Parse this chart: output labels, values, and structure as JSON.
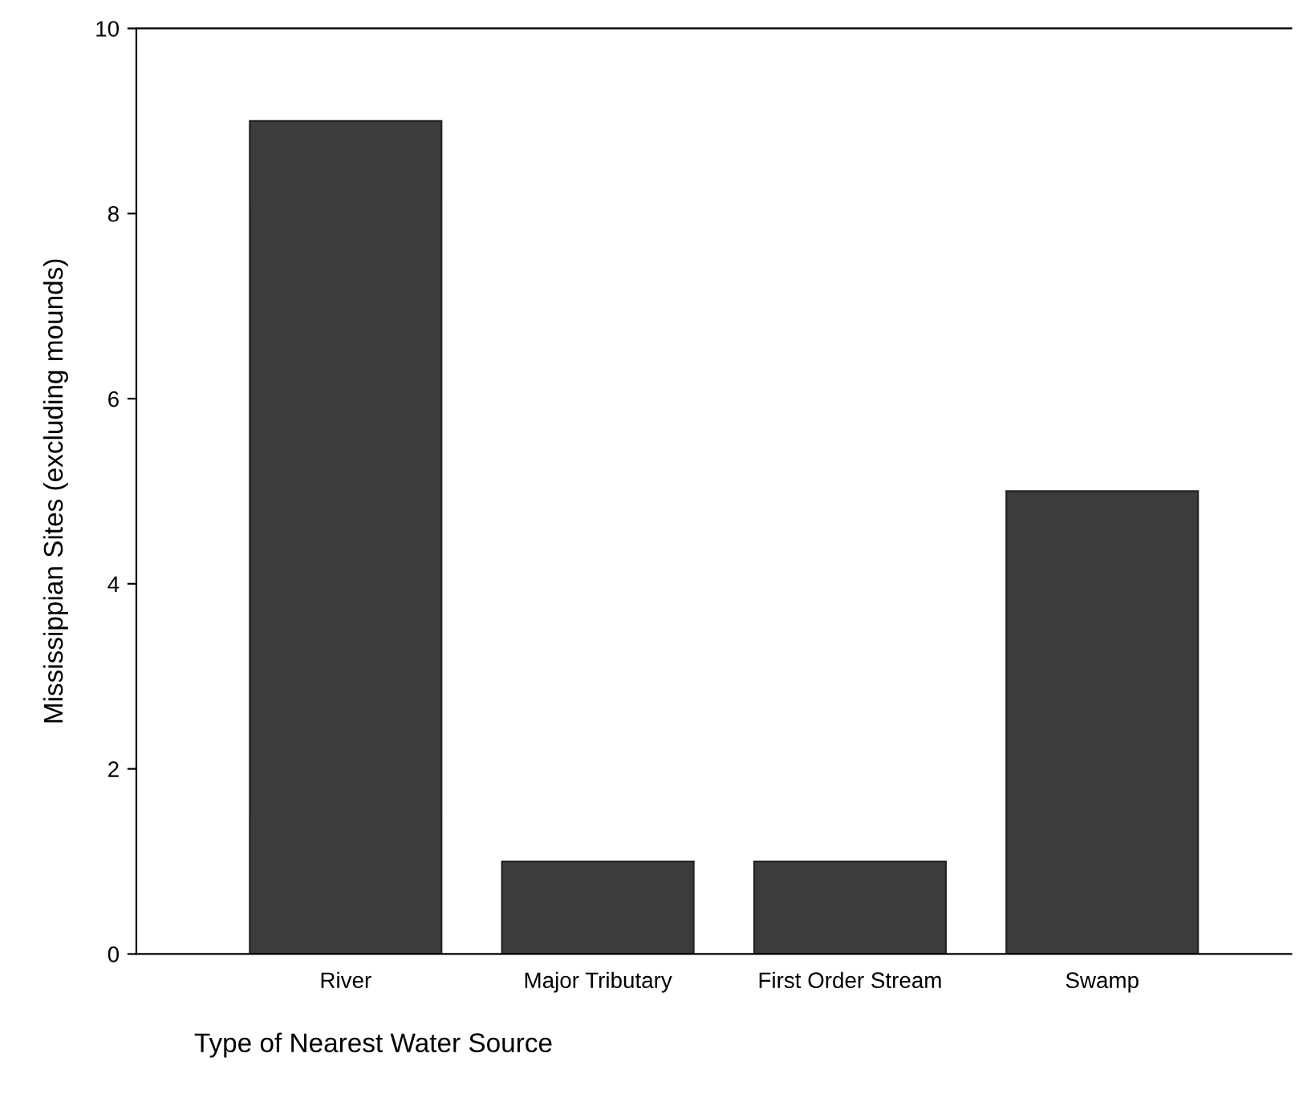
{
  "chart_data": {
    "type": "bar",
    "xlabel": "Type of Nearest Water Source",
    "ylabel": "Mississippian Sites (excluding mounds)",
    "categories": [
      "River",
      "Major Tributary",
      "First Order Stream",
      "Swamp"
    ],
    "values": [
      9,
      1,
      1,
      5
    ],
    "color": "#3c3c3c",
    "ylim": [
      0,
      10
    ],
    "yticks": [
      0,
      2,
      4,
      6,
      8,
      10
    ],
    "grid": false
  }
}
